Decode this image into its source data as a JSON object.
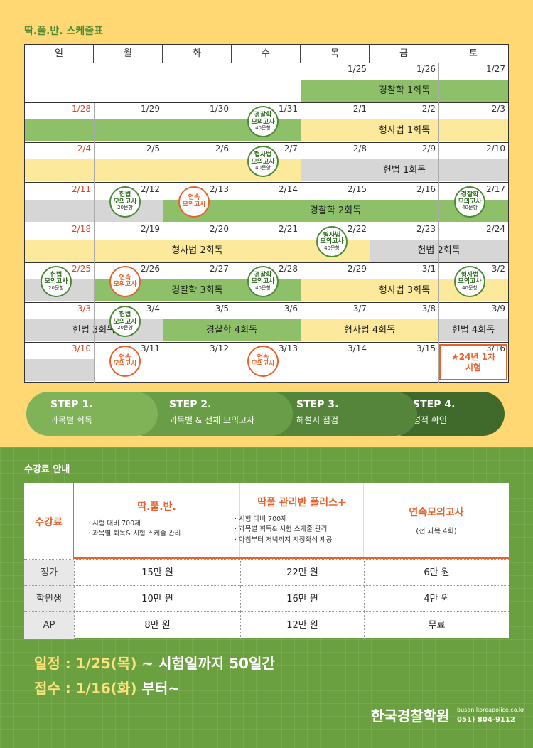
{
  "title": "딱.풀.반. 스케줄표",
  "weekdays": [
    "일",
    "월",
    "화",
    "수",
    "목",
    "금",
    "토"
  ],
  "weeks": [
    {
      "dates": [
        "",
        "",
        "",
        "",
        "1/25",
        "1/26",
        "1/27"
      ]
    },
    {
      "dates": [
        "1/28",
        "1/29",
        "1/30",
        "1/31",
        "2/1",
        "2/2",
        "2/3"
      ]
    },
    {
      "dates": [
        "2/4",
        "2/5",
        "2/6",
        "2/7",
        "2/8",
        "2/9",
        "2/10"
      ]
    },
    {
      "dates": [
        "2/11",
        "2/12",
        "2/13",
        "2/14",
        "2/15",
        "2/16",
        "2/17"
      ]
    },
    {
      "dates": [
        "2/18",
        "2/19",
        "2/20",
        "2/21",
        "2/22",
        "2/23",
        "2/24"
      ]
    },
    {
      "dates": [
        "2/25",
        "2/26",
        "2/27",
        "2/28",
        "2/29",
        "3/1",
        "3/2"
      ]
    },
    {
      "dates": [
        "3/3",
        "3/4",
        "3/5",
        "3/6",
        "3/7",
        "3/8",
        "3/9"
      ]
    },
    {
      "dates": [
        "3/10",
        "3/11",
        "3/12",
        "3/13",
        "3/14",
        "3/15",
        "3/16"
      ]
    }
  ],
  "bars": {
    "w1": "경찰학 1회독",
    "w2": "형사법 1회독",
    "w3": "헌법 1회독",
    "w4": "경찰학 2회독",
    "w5a": "형사법 2회독",
    "w5b": "헌법 2회독",
    "w6a": "경찰학 3회독",
    "w6b": "형사법 3회독",
    "w7a": "헌법 3회독",
    "w7b": "경찰학 4회독",
    "w7c": "형사법 4회독",
    "w7d": "헌법 4회독"
  },
  "badges": {
    "police": [
      "경찰학",
      "모의고사",
      "40문항"
    ],
    "criminal": [
      "형사법",
      "모의고사",
      "40문항"
    ],
    "const": [
      "헌법",
      "모의고사",
      "20문항"
    ],
    "continuous": [
      "연속",
      "모의고사"
    ]
  },
  "exam": [
    "24년 1차",
    "시험"
  ],
  "steps": [
    {
      "title": "STEP 1.",
      "desc": "과목별 회독"
    },
    {
      "title": "STEP 2.",
      "desc": "과목별 & 전체 모의고사"
    },
    {
      "title": "STEP 3.",
      "desc": "해설지 점검"
    },
    {
      "title": "STEP 4.",
      "desc": "성적 확인"
    }
  ],
  "fees": {
    "section_title": "수강료 안내",
    "label": "수강료",
    "columns": [
      {
        "name": "딱.풀.반.",
        "items": [
          "시험 대비 700제",
          "과목별 회독& 시험 스케줄 관리"
        ]
      },
      {
        "name": "딱풀 관리반 플러스+",
        "items": [
          "시험 대비 700제",
          "과목별 회독& 시험 스케줄 관리",
          "아침부터 저녁까지 지정좌석 제공"
        ]
      },
      {
        "name": "연속모의고사",
        "items": [
          "(전 과목 4회)"
        ]
      }
    ],
    "rows": [
      {
        "label": "정가",
        "values": [
          "15만 원",
          "22만 원",
          "6만 원"
        ]
      },
      {
        "label": "학원생",
        "values": [
          "10만 원",
          "16만 원",
          "4만 원"
        ]
      },
      {
        "label": "AP",
        "values": [
          "8만 원",
          "12만 원",
          "무료"
        ]
      }
    ]
  },
  "schedule": {
    "line1_a": "일정 : 1/25(목)",
    "line1_b": " ~ 시험일까지 50일간",
    "line2_a": "접수 : 1/16(화)",
    "line2_b": " 부터~"
  },
  "brand": {
    "name": "한국경찰학원",
    "site": "busan.koreapolice.co.kr",
    "phone": "051) 804-9112"
  },
  "colors": {
    "bg_yellow": "#ffd873",
    "green": "#8ec06a",
    "yellow_bar": "#fde99c",
    "gray_bar": "#d6d6d6",
    "orange": "#e6612c",
    "dark_green": "#4c8a35"
  }
}
